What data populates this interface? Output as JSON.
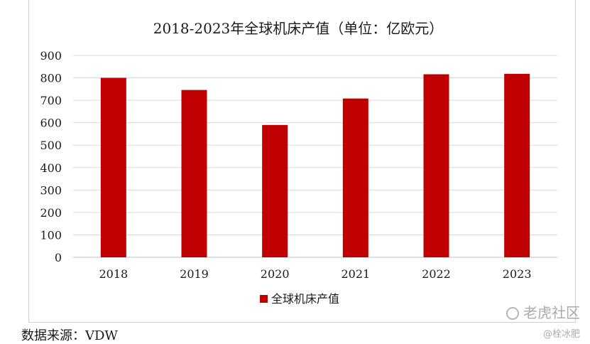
{
  "source_text": "数据来源：VDW",
  "watermark": {
    "line1": "老虎社区",
    "line2": "@栓冰肥"
  },
  "chart_data": {
    "type": "bar",
    "title": "2018-2023年全球机床产值（单位：亿欧元）",
    "categories": [
      "2018",
      "2019",
      "2020",
      "2021",
      "2022",
      "2023"
    ],
    "series": [
      {
        "name": "全球机床产值",
        "values": [
          800,
          746,
          590,
          708,
          816,
          818
        ]
      }
    ],
    "ylim": [
      0,
      900
    ],
    "yticks": [
      "0",
      "100",
      "200",
      "300",
      "400",
      "500",
      "600",
      "700",
      "800",
      "900"
    ],
    "grid": true,
    "legend_position": "bottom",
    "bar_color": "#C00000"
  }
}
